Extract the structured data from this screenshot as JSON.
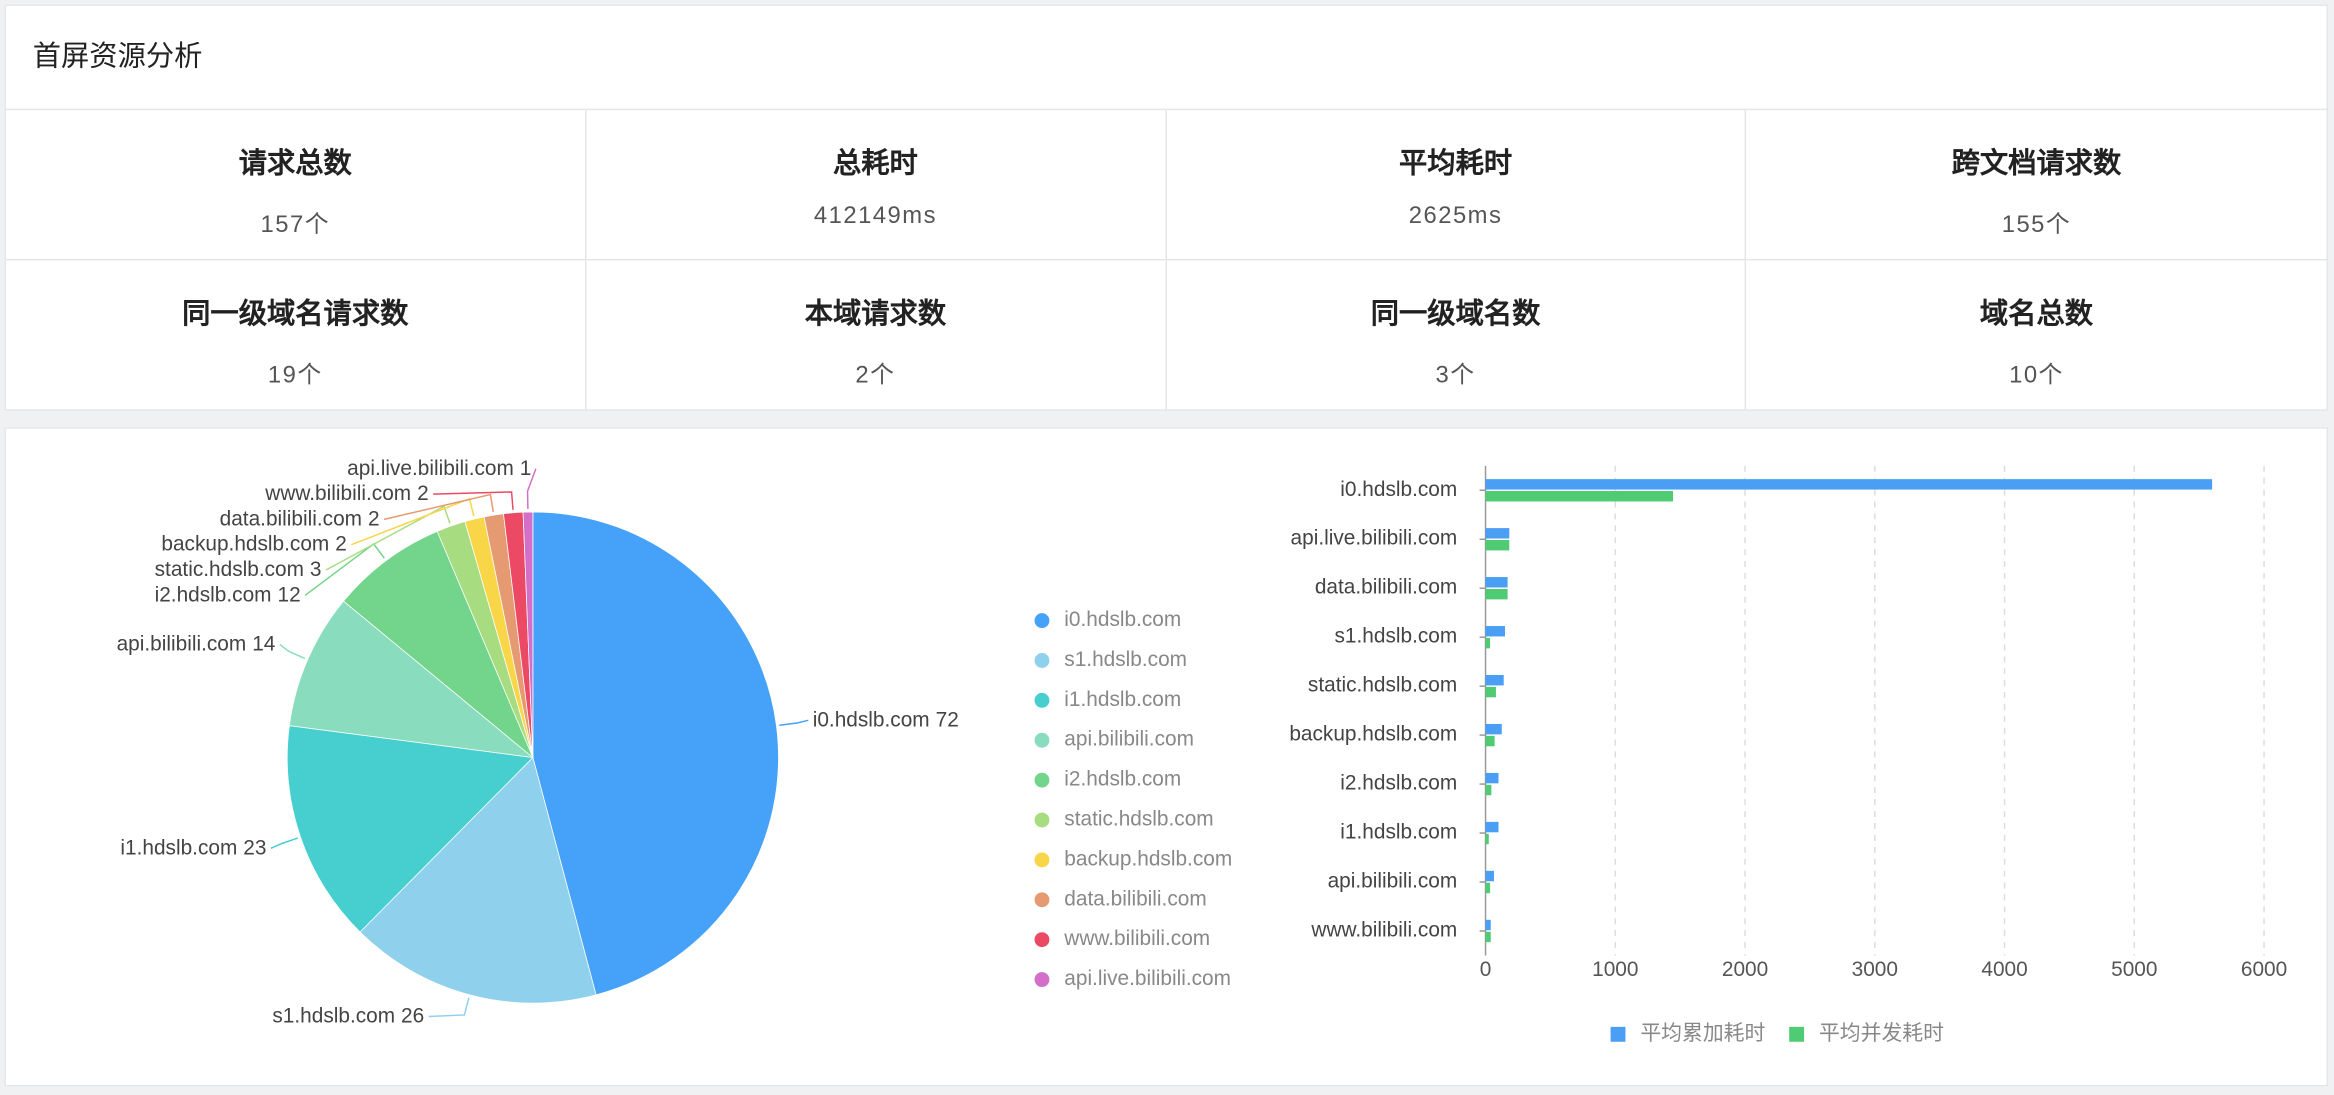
{
  "header": {
    "title": "首屏资源分析"
  },
  "stats": [
    {
      "label": "请求总数",
      "value": "157个"
    },
    {
      "label": "总耗时",
      "value": "412149ms"
    },
    {
      "label": "平均耗时",
      "value": "2625ms"
    },
    {
      "label": "跨文档请求数",
      "value": "155个"
    },
    {
      "label": "同一级域名请求数",
      "value": "19个"
    },
    {
      "label": "本域请求数",
      "value": "2个"
    },
    {
      "label": "同一级域名数",
      "value": "3个"
    },
    {
      "label": "域名总数",
      "value": "10个"
    }
  ],
  "chart_data": [
    {
      "type": "pie",
      "categories": [
        "i0.hdslb.com",
        "s1.hdslb.com",
        "i1.hdslb.com",
        "api.bilibili.com",
        "i2.hdslb.com",
        "static.hdslb.com",
        "backup.hdslb.com",
        "data.bilibili.com",
        "www.bilibili.com",
        "api.live.bilibili.com"
      ],
      "values": [
        72,
        26,
        23,
        14,
        12,
        3,
        2,
        2,
        2,
        1
      ],
      "colors": [
        "#45a2f8",
        "#8fd1ec",
        "#47cfcf",
        "#89dcbd",
        "#73d48b",
        "#a7dc81",
        "#f9d548",
        "#e59a72",
        "#ec4a64",
        "#d36fc9"
      ]
    },
    {
      "type": "hbar",
      "categories": [
        "i0.hdslb.com",
        "api.live.bilibili.com",
        "data.bilibili.com",
        "s1.hdslb.com",
        "static.hdslb.com",
        "backup.hdslb.com",
        "i2.hdslb.com",
        "i1.hdslb.com",
        "api.bilibili.com",
        "www.bilibili.com"
      ],
      "series": [
        {
          "name": "平均累加耗时",
          "color": "#4a9ff5",
          "values": [
            5600,
            183,
            170,
            150,
            140,
            125,
            100,
            100,
            65,
            40
          ]
        },
        {
          "name": "平均并发耗时",
          "color": "#4ecb73",
          "values": [
            1445,
            183,
            170,
            35,
            80,
            70,
            45,
            25,
            35,
            40
          ]
        }
      ],
      "xlim": [
        0,
        6000
      ],
      "xticks": [
        0,
        1000,
        2000,
        3000,
        4000,
        5000,
        6000
      ],
      "grid": true
    }
  ]
}
